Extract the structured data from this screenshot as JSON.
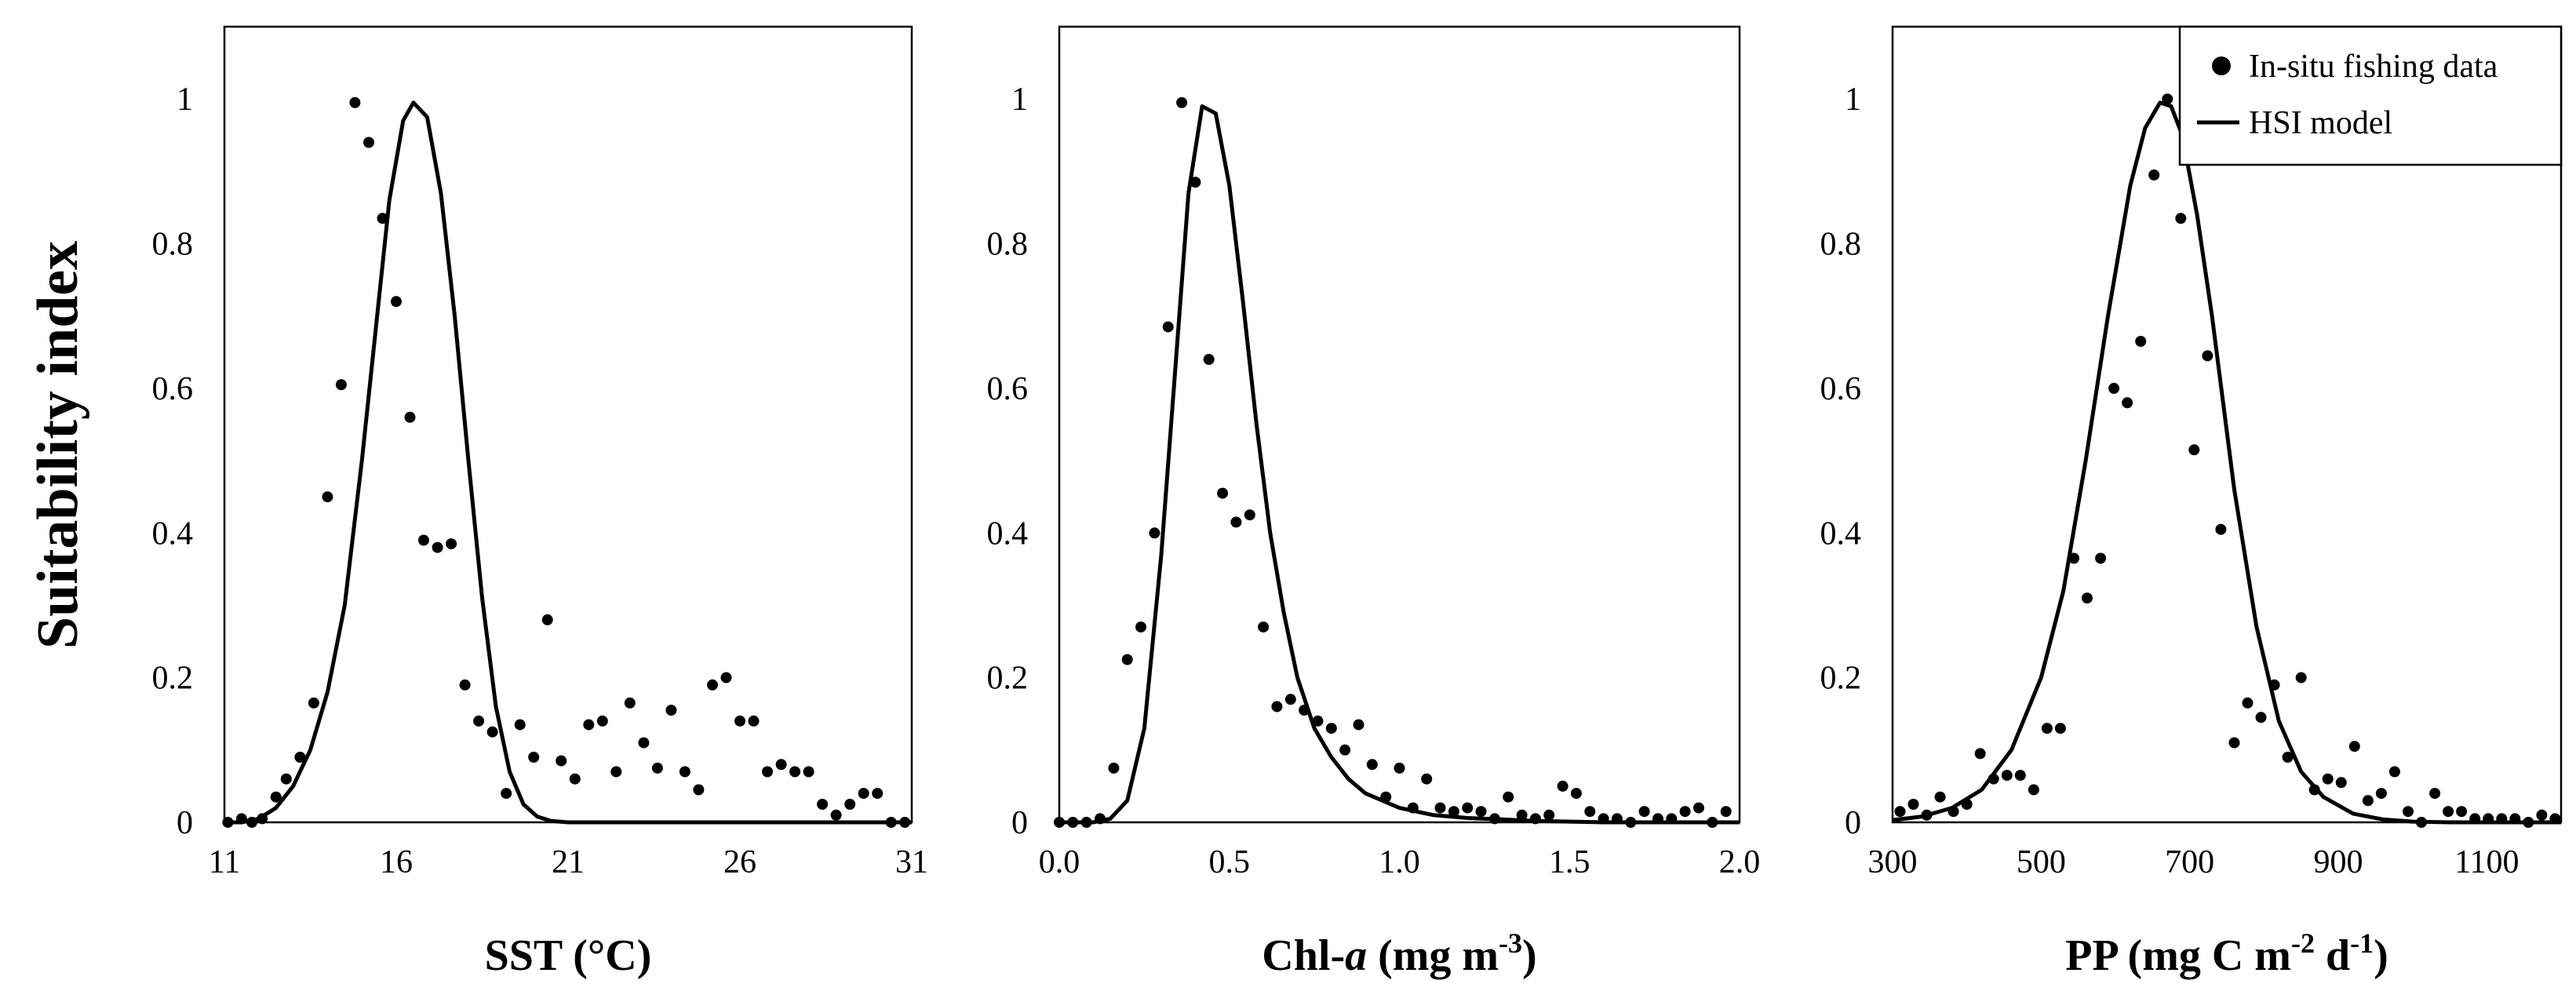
{
  "chart_data": {
    "type": "scatter",
    "ylabel": "Suitability index",
    "legend": {
      "placement": "top-right of third panel",
      "entries": [
        {
          "label": "In-situ fishing data",
          "marker": "dot"
        },
        {
          "label": "HSI model",
          "marker": "line"
        }
      ]
    },
    "panels": [
      {
        "xlabel_parts": [
          {
            "text": "SST (°C)",
            "italic": false,
            "sup": false
          }
        ],
        "xlim": [
          11,
          31
        ],
        "ylim": [
          0,
          1.1
        ],
        "xticks": [
          11,
          16,
          21,
          26,
          31
        ],
        "xtick_labels": [
          "11",
          "16",
          "21",
          "26",
          "31"
        ],
        "yticks": [
          0,
          0.2,
          0.4,
          0.6,
          0.8,
          1
        ],
        "ytick_labels": [
          "0",
          "0.2",
          "0.4",
          "0.6",
          "0.8",
          "1"
        ],
        "series": [
          {
            "name": "In-situ fishing data",
            "kind": "scatter",
            "x": [
              11.1,
              11.5,
              11.8,
              12.1,
              12.5,
              12.8,
              13.2,
              13.6,
              14.0,
              14.4,
              14.8,
              15.2,
              15.6,
              16.0,
              16.4,
              16.8,
              17.2,
              17.6,
              18.0,
              18.4,
              18.8,
              19.2,
              19.6,
              20.0,
              20.4,
              20.8,
              21.2,
              21.6,
              22.0,
              22.4,
              22.8,
              23.2,
              23.6,
              24.0,
              24.4,
              24.8,
              25.2,
              25.6,
              26.0,
              26.4,
              26.8,
              27.2,
              27.6,
              28.0,
              28.4,
              28.8,
              29.2,
              29.6,
              30.0,
              30.4,
              30.8
            ],
            "y": [
              0.0,
              0.005,
              0.0,
              0.005,
              0.035,
              0.06,
              0.09,
              0.165,
              0.45,
              0.605,
              0.995,
              0.94,
              0.835,
              0.72,
              0.56,
              0.39,
              0.38,
              0.385,
              0.19,
              0.14,
              0.125,
              0.04,
              0.135,
              0.09,
              0.28,
              0.085,
              0.06,
              0.135,
              0.14,
              0.07,
              0.165,
              0.11,
              0.075,
              0.155,
              0.07,
              0.045,
              0.19,
              0.2,
              0.14,
              0.14,
              0.07,
              0.08,
              0.07,
              0.07,
              0.025,
              0.01,
              0.025,
              0.04,
              0.04,
              0.0,
              0.0
            ]
          },
          {
            "name": "HSI model",
            "kind": "line",
            "x": [
              11.0,
              11.5,
              12.0,
              12.5,
              13.0,
              13.5,
              14.0,
              14.5,
              15.0,
              15.4,
              15.8,
              16.2,
              16.5,
              16.9,
              17.3,
              17.7,
              18.1,
              18.5,
              18.9,
              19.3,
              19.7,
              20.1,
              20.5,
              21.0,
              22.0,
              24.0,
              26.0,
              28.0,
              31.0
            ],
            "y": [
              0.0,
              0.0,
              0.005,
              0.02,
              0.05,
              0.1,
              0.18,
              0.3,
              0.5,
              0.68,
              0.86,
              0.97,
              0.995,
              0.975,
              0.87,
              0.7,
              0.5,
              0.31,
              0.16,
              0.07,
              0.025,
              0.008,
              0.002,
              0.0,
              0.0,
              0.0,
              0.0,
              0.0,
              0.0
            ]
          }
        ]
      },
      {
        "xlabel_parts": [
          {
            "text": "Chl-",
            "italic": false,
            "sup": false
          },
          {
            "text": "a",
            "italic": true,
            "sup": false
          },
          {
            "text": " (mg m",
            "italic": false,
            "sup": false
          },
          {
            "text": "-3",
            "italic": false,
            "sup": true
          },
          {
            "text": ")",
            "italic": false,
            "sup": false
          }
        ],
        "xlim": [
          0.0,
          2.0
        ],
        "ylim": [
          0,
          1.1
        ],
        "xticks": [
          0.0,
          0.5,
          1.0,
          1.5,
          2.0
        ],
        "xtick_labels": [
          "0.0",
          "0.5",
          "1.0",
          "1.5",
          "2.0"
        ],
        "yticks": [
          0,
          0.2,
          0.4,
          0.6,
          0.8,
          1
        ],
        "ytick_labels": [
          "0",
          "0.2",
          "0.4",
          "0.6",
          "0.8",
          "1"
        ],
        "series": [
          {
            "name": "In-situ fishing data",
            "kind": "scatter",
            "x": [
              0.0,
              0.04,
              0.08,
              0.12,
              0.16,
              0.2,
              0.24,
              0.28,
              0.32,
              0.36,
              0.4,
              0.44,
              0.48,
              0.52,
              0.56,
              0.6,
              0.64,
              0.68,
              0.72,
              0.76,
              0.8,
              0.84,
              0.88,
              0.92,
              0.96,
              1.0,
              1.04,
              1.08,
              1.12,
              1.16,
              1.2,
              1.24,
              1.28,
              1.32,
              1.36,
              1.4,
              1.44,
              1.48,
              1.52,
              1.56,
              1.6,
              1.64,
              1.68,
              1.72,
              1.76,
              1.8,
              1.84,
              1.88,
              1.92,
              1.96
            ],
            "y": [
              0.0,
              0.0,
              0.0,
              0.005,
              0.075,
              0.225,
              0.27,
              0.4,
              0.685,
              0.995,
              0.885,
              0.64,
              0.455,
              0.415,
              0.425,
              0.27,
              0.16,
              0.17,
              0.155,
              0.14,
              0.13,
              0.1,
              0.135,
              0.08,
              0.035,
              0.075,
              0.02,
              0.06,
              0.02,
              0.015,
              0.02,
              0.015,
              0.005,
              0.035,
              0.01,
              0.005,
              0.01,
              0.05,
              0.04,
              0.015,
              0.005,
              0.005,
              0.0,
              0.015,
              0.005,
              0.005,
              0.015,
              0.02,
              0.0,
              0.015
            ]
          },
          {
            "name": "HSI model",
            "kind": "line",
            "x": [
              0.0,
              0.1,
              0.15,
              0.2,
              0.25,
              0.3,
              0.34,
              0.38,
              0.42,
              0.46,
              0.5,
              0.54,
              0.58,
              0.62,
              0.66,
              0.7,
              0.75,
              0.8,
              0.85,
              0.9,
              0.95,
              1.0,
              1.1,
              1.2,
              1.3,
              1.4,
              1.5,
              1.6,
              1.8,
              2.0
            ],
            "y": [
              0.0,
              0.0,
              0.005,
              0.03,
              0.13,
              0.37,
              0.62,
              0.87,
              0.99,
              0.98,
              0.88,
              0.72,
              0.55,
              0.4,
              0.29,
              0.2,
              0.13,
              0.09,
              0.06,
              0.04,
              0.03,
              0.02,
              0.01,
              0.006,
              0.004,
              0.002,
              0.001,
              0.0,
              0.0,
              0.0
            ]
          }
        ]
      },
      {
        "xlabel_parts": [
          {
            "text": "PP (mg C m",
            "italic": false,
            "sup": false
          },
          {
            "text": "-2",
            "italic": false,
            "sup": true
          },
          {
            "text": " d",
            "italic": false,
            "sup": false
          },
          {
            "text": "-1",
            "italic": false,
            "sup": true
          },
          {
            "text": ")",
            "italic": false,
            "sup": false
          }
        ],
        "xlim": [
          300,
          1200
        ],
        "ylim": [
          0,
          1.1
        ],
        "xticks": [
          300,
          500,
          700,
          900,
          1100
        ],
        "xtick_labels": [
          "300",
          "500",
          "700",
          "900",
          "1100"
        ],
        "yticks": [
          0,
          0.2,
          0.4,
          0.6,
          0.8,
          1
        ],
        "ytick_labels": [
          "0",
          "0.2",
          "0.4",
          "0.6",
          "0.8",
          "1"
        ],
        "series": [
          {
            "name": "In-situ fishing data",
            "kind": "scatter",
            "x": [
              310,
              328,
              346,
              364,
              382,
              400,
              418,
              436,
              454,
              472,
              490,
              508,
              526,
              544,
              562,
              580,
              598,
              616,
              634,
              652,
              670,
              688,
              706,
              724,
              742,
              760,
              778,
              796,
              814,
              832,
              850,
              868,
              886,
              904,
              922,
              940,
              958,
              976,
              994,
              1012,
              1030,
              1048,
              1066,
              1084,
              1102,
              1120,
              1138,
              1156,
              1174,
              1192
            ],
            "y": [
              0.015,
              0.025,
              0.01,
              0.035,
              0.015,
              0.025,
              0.095,
              0.06,
              0.065,
              0.065,
              0.045,
              0.13,
              0.13,
              0.365,
              0.31,
              0.365,
              0.6,
              0.58,
              0.665,
              0.895,
              1.0,
              0.835,
              0.515,
              0.645,
              0.405,
              0.11,
              0.165,
              0.145,
              0.19,
              0.09,
              0.2,
              0.045,
              0.06,
              0.055,
              0.105,
              0.03,
              0.04,
              0.07,
              0.015,
              0.0,
              0.04,
              0.015,
              0.015,
              0.005,
              0.005,
              0.005,
              0.005,
              0.0,
              0.01,
              0.005
            ]
          },
          {
            "name": "HSI model",
            "kind": "line",
            "x": [
              300,
              340,
              380,
              420,
              460,
              500,
              530,
              560,
              590,
              620,
              640,
              660,
              675,
              690,
              710,
              730,
              760,
              790,
              820,
              850,
              880,
              920,
              960,
              1000,
              1050,
              1100,
              1200
            ],
            "y": [
              0.003,
              0.008,
              0.02,
              0.045,
              0.1,
              0.2,
              0.32,
              0.5,
              0.7,
              0.88,
              0.96,
              0.995,
              0.99,
              0.95,
              0.84,
              0.7,
              0.46,
              0.27,
              0.14,
              0.07,
              0.035,
              0.012,
              0.004,
              0.001,
              0.0,
              0.0,
              0.0
            ]
          }
        ]
      }
    ]
  }
}
